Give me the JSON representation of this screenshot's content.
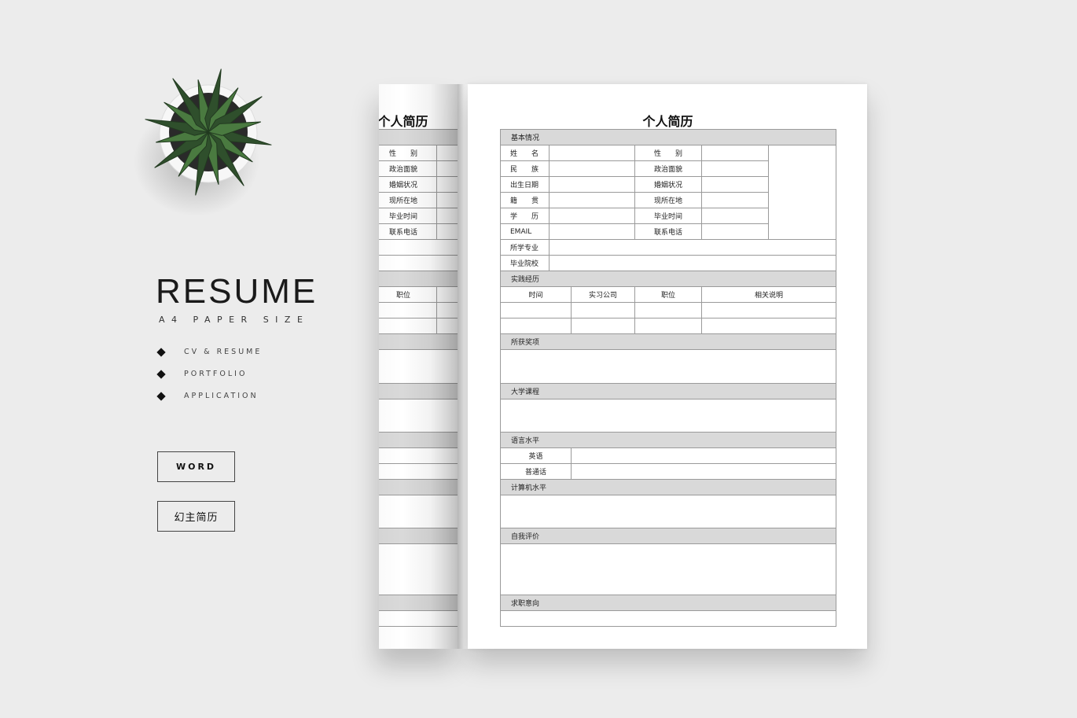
{
  "sidebar": {
    "title": "RESUME",
    "subtitle": "A4 PAPER SIZE",
    "features": [
      "CV & RESUME",
      "PORTFOLIO",
      "APPLICATION"
    ],
    "buttons": {
      "word": "WORD",
      "brand": "幻主简历"
    }
  },
  "resume": {
    "title": "个人简历",
    "sections": {
      "basic": "基本情况",
      "practice": "实践经历",
      "awards": "所获奖项",
      "courses": "大学课程",
      "language": "语言水平",
      "computer": "计算机水平",
      "self_eval": "自我评价",
      "intent": "求职意向"
    },
    "basic_rows": [
      {
        "label": "姓　　名",
        "label2": "性　　别"
      },
      {
        "label": "民　　族",
        "label2": "政治面貌"
      },
      {
        "label": "出生日期",
        "label2": "婚姻状况"
      },
      {
        "label": "籍　　贯",
        "label2": "现所在地"
      },
      {
        "label": "学　　历",
        "label2": "毕业时间"
      },
      {
        "label": "EMAIL",
        "label2": "联系电话"
      }
    ],
    "wide_rows": [
      "所学专业",
      "毕业院校"
    ],
    "practice_headers": [
      "时间",
      "实习公司",
      "职位",
      "相关说明"
    ],
    "language_rows": [
      "英语",
      "普通话"
    ]
  },
  "colors": {
    "background": "#ececec",
    "section_fill": "#d9d9d9",
    "border": "#9a9a9a"
  }
}
